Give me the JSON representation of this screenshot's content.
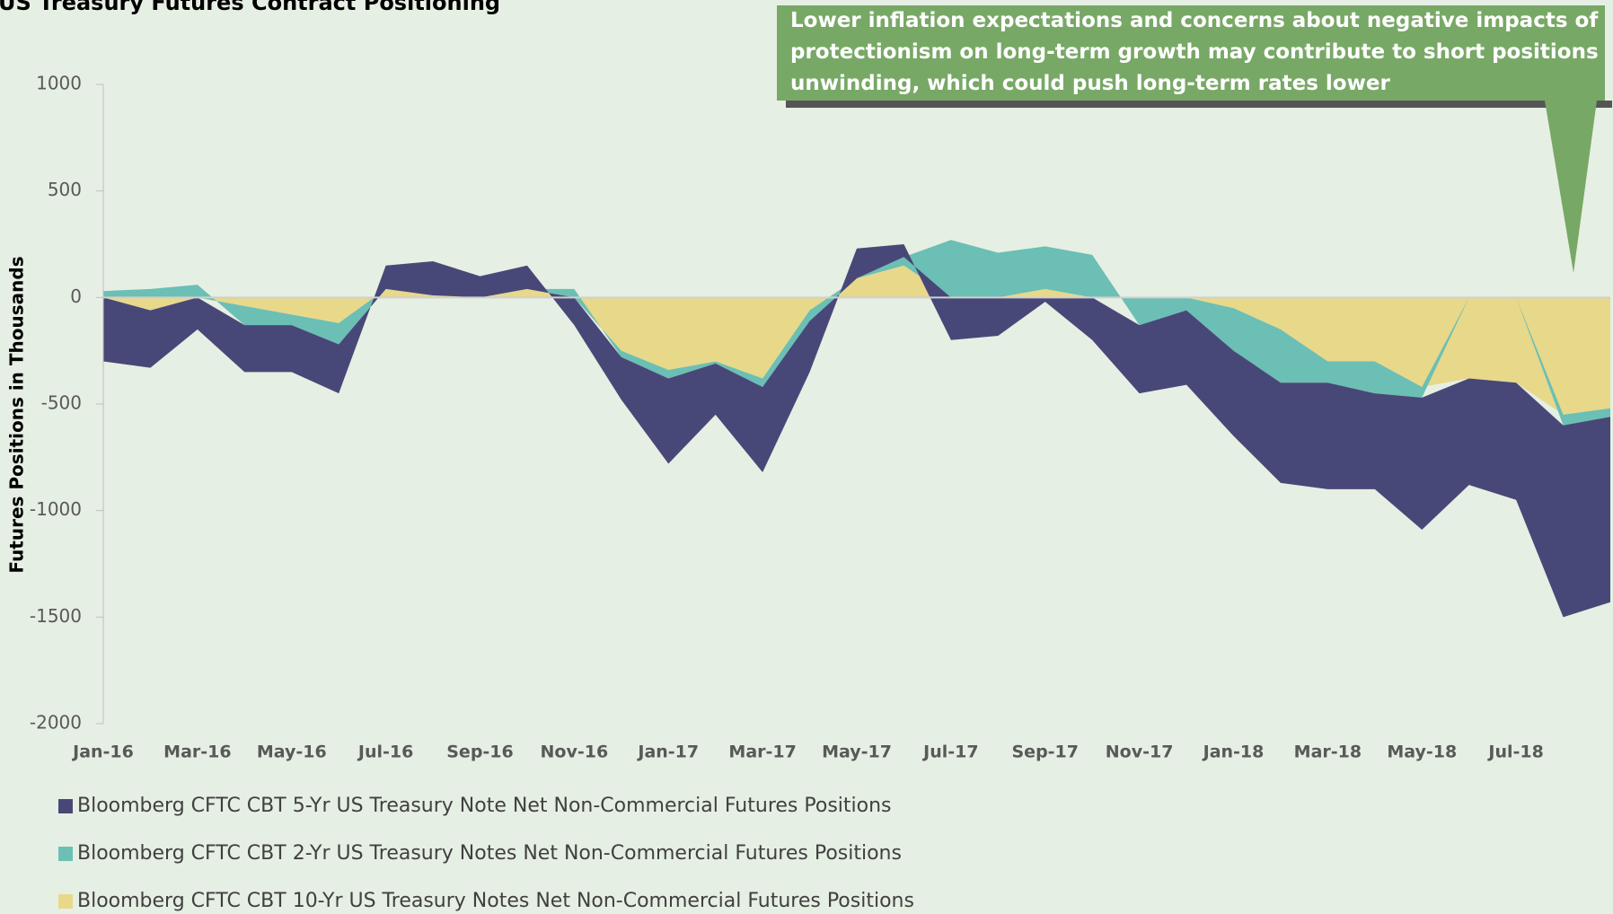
{
  "chart_data": {
    "type": "stacked_area",
    "title": "US Treasury Futures Contract Positioning",
    "ylabel": "Futures Positions in Thousands",
    "annotation": "Lower inflation expectations and concerns about negative impacts of protectionism on long-term growth may contribute to short positions unwinding, which could push long-term rates lower",
    "categories": [
      "Jan-16",
      null,
      "Mar-16",
      null,
      "May-16",
      null,
      "Jul-16",
      null,
      "Sep-16",
      null,
      "Nov-16",
      null,
      "Jan-17",
      null,
      "Mar-17",
      null,
      "May-17",
      null,
      "Jul-17",
      null,
      "Sep-17",
      null,
      "Nov-17",
      null,
      "Jan-18",
      null,
      "Mar-18",
      null,
      "May-18",
      null,
      "Jul-18",
      null,
      null
    ],
    "series": [
      {
        "name": "Bloomberg CFTC CBT 5-Yr US Treasury Note Net Non-Commercial Futures Positions",
        "color": "#484878",
        "values": [
          -300,
          -270,
          -150,
          -220,
          -220,
          -230,
          110,
          160,
          100,
          110,
          -130,
          -200,
          -400,
          -240,
          -400,
          -240,
          140,
          60,
          -200,
          -180,
          -20,
          -200,
          -320,
          -350,
          -400,
          -470,
          -500,
          -450,
          -620,
          -500,
          -550,
          -900,
          -870
        ]
      },
      {
        "name": "Bloomberg CFTC CBT 2-Yr US Treasury Notes Net Non-Commercial Futures Positions",
        "color": "#6bbfb5",
        "values": [
          30,
          40,
          60,
          -90,
          -50,
          -100,
          0,
          0,
          0,
          0,
          40,
          -30,
          -40,
          -10,
          -40,
          -50,
          0,
          40,
          270,
          210,
          200,
          200,
          -130,
          -60,
          -200,
          -250,
          -100,
          -150,
          -50,
          0,
          0,
          -50,
          -40
        ]
      },
      {
        "name": "Bloomberg CFTC CBT 10-Yr US Treasury Notes Net Non-Commercial Futures Positions",
        "color": "#e8d88a",
        "values": [
          0,
          -60,
          0,
          -40,
          -80,
          -120,
          40,
          10,
          0,
          40,
          0,
          -250,
          -340,
          -300,
          -380,
          -60,
          90,
          150,
          0,
          0,
          40,
          0,
          0,
          0,
          -50,
          -150,
          -300,
          -300,
          -420,
          -380,
          -400,
          -550,
          -520
        ]
      }
    ],
    "stack_order": [
      2,
      1,
      0
    ],
    "ylim": [
      -2000,
      1000
    ],
    "yticks": [
      -2000,
      -1500,
      -1000,
      -500,
      0,
      500,
      1000
    ]
  }
}
